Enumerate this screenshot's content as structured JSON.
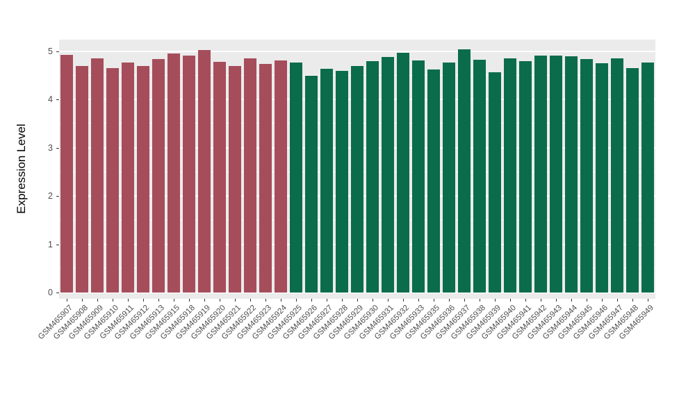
{
  "chart_data": {
    "type": "bar",
    "title": "",
    "xlabel": "",
    "ylabel": "Expression Level",
    "ylim": [
      0,
      5
    ],
    "yticks": [
      0,
      1,
      2,
      3,
      4,
      5
    ],
    "grid": "on",
    "legend_position": "none",
    "categories": [
      "GSM465907",
      "GSM465908",
      "GSM465909",
      "GSM465910",
      "GSM465911",
      "GSM465912",
      "GSM465913",
      "GSM465915",
      "GSM465918",
      "GSM465919",
      "GSM465920",
      "GSM465921",
      "GSM465922",
      "GSM465923",
      "GSM465924",
      "GSM465925",
      "GSM465926",
      "GSM465927",
      "GSM465928",
      "GSM465929",
      "GSM465930",
      "GSM465931",
      "GSM465932",
      "GSM465933",
      "GSM465935",
      "GSM465936",
      "GSM465937",
      "GSM465938",
      "GSM465939",
      "GSM465940",
      "GSM465941",
      "GSM465942",
      "GSM465943",
      "GSM465944",
      "GSM465945",
      "GSM465946",
      "GSM465947",
      "GSM465948",
      "GSM465949"
    ],
    "values": [
      4.93,
      4.7,
      4.86,
      4.66,
      4.77,
      4.7,
      4.84,
      4.96,
      4.92,
      5.03,
      4.78,
      4.7,
      4.86,
      4.74,
      4.81,
      4.77,
      4.5,
      4.64,
      4.6,
      4.7,
      4.8,
      4.88,
      4.97,
      4.81,
      4.63,
      4.77,
      5.04,
      4.83,
      4.57,
      4.85,
      4.8,
      4.92,
      4.92,
      4.9,
      4.84,
      4.76,
      4.85,
      4.65,
      4.77
    ],
    "groups": [
      0,
      0,
      0,
      0,
      0,
      0,
      0,
      0,
      0,
      0,
      0,
      0,
      0,
      0,
      0,
      1,
      1,
      1,
      1,
      1,
      1,
      1,
      1,
      1,
      1,
      1,
      1,
      1,
      1,
      1,
      1,
      1,
      1,
      1,
      1,
      1,
      1,
      1,
      1
    ],
    "palette": [
      "#A64D5B",
      "#0B6C4B"
    ],
    "panel_background": "#EBEBEB",
    "grid_color": "#FFFFFF",
    "axis_text_color": "#4D4D4D",
    "tick_color": "#333333"
  }
}
